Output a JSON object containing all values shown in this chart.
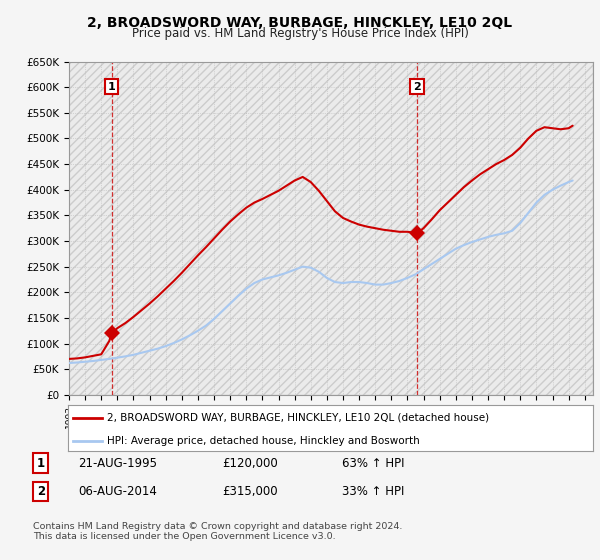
{
  "title": "2, BROADSWORD WAY, BURBAGE, HINCKLEY, LE10 2QL",
  "subtitle": "Price paid vs. HM Land Registry's House Price Index (HPI)",
  "legend_line1": "2, BROADSWORD WAY, BURBAGE, HINCKLEY, LE10 2QL (detached house)",
  "legend_line2": "HPI: Average price, detached house, Hinckley and Bosworth",
  "footnote": "Contains HM Land Registry data © Crown copyright and database right 2024.\nThis data is licensed under the Open Government Licence v3.0.",
  "sale1_date": "21-AUG-1995",
  "sale1_price": "£120,000",
  "sale1_hpi": "63% ↑ HPI",
  "sale1_year": 1995.64,
  "sale1_value": 120000,
  "sale2_date": "06-AUG-2014",
  "sale2_price": "£315,000",
  "sale2_hpi": "33% ↑ HPI",
  "sale2_year": 2014.6,
  "sale2_value": 315000,
  "ylim": [
    0,
    650000
  ],
  "yticks": [
    0,
    50000,
    100000,
    150000,
    200000,
    250000,
    300000,
    350000,
    400000,
    450000,
    500000,
    550000,
    600000,
    650000
  ],
  "ytick_labels": [
    "£0",
    "£50K",
    "£100K",
    "£150K",
    "£200K",
    "£250K",
    "£300K",
    "£350K",
    "£400K",
    "£450K",
    "£500K",
    "£550K",
    "£600K",
    "£650K"
  ],
  "xlim_start": 1993.0,
  "xlim_end": 2025.5,
  "bg_color": "#f5f5f5",
  "hpi_color": "#a8c8f0",
  "price_color": "#cc0000",
  "grid_color": "#dddddd",
  "hatch_color": "#e0e0e0",
  "hpi_data": [
    [
      1993.0,
      62000
    ],
    [
      1993.5,
      63000
    ],
    [
      1994.0,
      64500
    ],
    [
      1994.5,
      66000
    ],
    [
      1995.0,
      68000
    ],
    [
      1995.5,
      70000
    ],
    [
      1996.0,
      72500
    ],
    [
      1996.5,
      75000
    ],
    [
      1997.0,
      78000
    ],
    [
      1997.5,
      82000
    ],
    [
      1998.0,
      86000
    ],
    [
      1998.5,
      90000
    ],
    [
      1999.0,
      95000
    ],
    [
      1999.5,
      101000
    ],
    [
      2000.0,
      108000
    ],
    [
      2000.5,
      116000
    ],
    [
      2001.0,
      125000
    ],
    [
      2001.5,
      135000
    ],
    [
      2002.0,
      148000
    ],
    [
      2002.5,
      163000
    ],
    [
      2003.0,
      178000
    ],
    [
      2003.5,
      193000
    ],
    [
      2004.0,
      207000
    ],
    [
      2004.5,
      218000
    ],
    [
      2005.0,
      225000
    ],
    [
      2005.5,
      229000
    ],
    [
      2006.0,
      233000
    ],
    [
      2006.5,
      238000
    ],
    [
      2007.0,
      244000
    ],
    [
      2007.5,
      250000
    ],
    [
      2008.0,
      248000
    ],
    [
      2008.5,
      240000
    ],
    [
      2009.0,
      228000
    ],
    [
      2009.5,
      220000
    ],
    [
      2010.0,
      218000
    ],
    [
      2010.5,
      220000
    ],
    [
      2011.0,
      220000
    ],
    [
      2011.5,
      218000
    ],
    [
      2012.0,
      215000
    ],
    [
      2012.5,
      215000
    ],
    [
      2013.0,
      218000
    ],
    [
      2013.5,
      222000
    ],
    [
      2014.0,
      228000
    ],
    [
      2014.5,
      235000
    ],
    [
      2015.0,
      245000
    ],
    [
      2015.5,
      255000
    ],
    [
      2016.0,
      265000
    ],
    [
      2016.5,
      275000
    ],
    [
      2017.0,
      285000
    ],
    [
      2017.5,
      292000
    ],
    [
      2018.0,
      298000
    ],
    [
      2018.5,
      303000
    ],
    [
      2019.0,
      308000
    ],
    [
      2019.5,
      312000
    ],
    [
      2020.0,
      315000
    ],
    [
      2020.5,
      320000
    ],
    [
      2021.0,
      335000
    ],
    [
      2021.5,
      355000
    ],
    [
      2022.0,
      375000
    ],
    [
      2022.5,
      390000
    ],
    [
      2023.0,
      400000
    ],
    [
      2023.5,
      408000
    ],
    [
      2024.0,
      415000
    ],
    [
      2024.25,
      418000
    ]
  ],
  "price_data": [
    [
      1993.0,
      70000
    ],
    [
      1993.5,
      71000
    ],
    [
      1994.0,
      73000
    ],
    [
      1994.5,
      76000
    ],
    [
      1995.0,
      79000
    ],
    [
      1995.5,
      105000
    ],
    [
      1995.64,
      120000
    ],
    [
      1996.0,
      130000
    ],
    [
      1996.5,
      140000
    ],
    [
      1997.0,
      152000
    ],
    [
      1997.5,
      165000
    ],
    [
      1998.0,
      178000
    ],
    [
      1998.5,
      192000
    ],
    [
      1999.0,
      207000
    ],
    [
      1999.5,
      222000
    ],
    [
      2000.0,
      238000
    ],
    [
      2000.5,
      255000
    ],
    [
      2001.0,
      272000
    ],
    [
      2001.5,
      288000
    ],
    [
      2002.0,
      305000
    ],
    [
      2002.5,
      322000
    ],
    [
      2003.0,
      338000
    ],
    [
      2003.5,
      352000
    ],
    [
      2004.0,
      365000
    ],
    [
      2004.5,
      375000
    ],
    [
      2005.0,
      382000
    ],
    [
      2005.5,
      390000
    ],
    [
      2006.0,
      398000
    ],
    [
      2006.5,
      408000
    ],
    [
      2007.0,
      418000
    ],
    [
      2007.5,
      425000
    ],
    [
      2008.0,
      415000
    ],
    [
      2008.5,
      398000
    ],
    [
      2009.0,
      378000
    ],
    [
      2009.5,
      358000
    ],
    [
      2010.0,
      345000
    ],
    [
      2010.5,
      338000
    ],
    [
      2011.0,
      332000
    ],
    [
      2011.5,
      328000
    ],
    [
      2012.0,
      325000
    ],
    [
      2012.5,
      322000
    ],
    [
      2013.0,
      320000
    ],
    [
      2013.5,
      318000
    ],
    [
      2014.0,
      318000
    ],
    [
      2014.5,
      316000
    ],
    [
      2014.6,
      315000
    ],
    [
      2015.0,
      325000
    ],
    [
      2015.5,
      342000
    ],
    [
      2016.0,
      360000
    ],
    [
      2016.5,
      375000
    ],
    [
      2017.0,
      390000
    ],
    [
      2017.5,
      405000
    ],
    [
      2018.0,
      418000
    ],
    [
      2018.5,
      430000
    ],
    [
      2019.0,
      440000
    ],
    [
      2019.5,
      450000
    ],
    [
      2020.0,
      458000
    ],
    [
      2020.5,
      468000
    ],
    [
      2021.0,
      482000
    ],
    [
      2021.5,
      500000
    ],
    [
      2022.0,
      515000
    ],
    [
      2022.5,
      522000
    ],
    [
      2023.0,
      520000
    ],
    [
      2023.5,
      518000
    ],
    [
      2024.0,
      520000
    ],
    [
      2024.25,
      525000
    ]
  ]
}
